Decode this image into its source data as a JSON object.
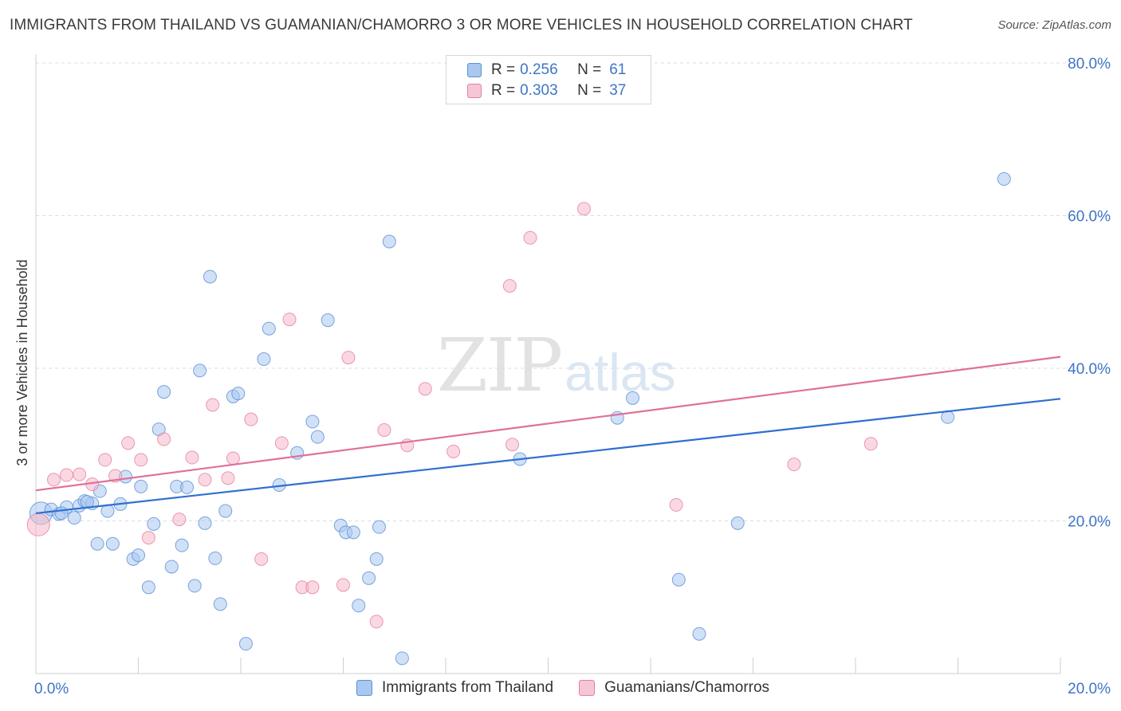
{
  "title": "IMMIGRANTS FROM THAILAND VS GUAMANIAN/CHAMORRO 3 OR MORE VEHICLES IN HOUSEHOLD CORRELATION CHART",
  "source": "Source: ZipAtlas.com",
  "watermark": {
    "zip": "ZIP",
    "atlas": "atlas"
  },
  "colors": {
    "blue_fill": "#a9c8f0",
    "blue_stroke": "#5b8fd6",
    "blue_line": "#2f6fcf",
    "pink_fill": "#f6b8cb",
    "pink_stroke": "#e77f9f",
    "pink_line": "#e0709a",
    "axis_text": "#3f75c7",
    "grid": "#dcdcdc"
  },
  "legend": {
    "rows": [
      {
        "r_label": "R =",
        "r_value": "0.256",
        "n_label": "N =",
        "n_value": "61"
      },
      {
        "r_label": "R =",
        "r_value": "0.303",
        "n_label": "N =",
        "n_value": "37"
      }
    ]
  },
  "bottom_legend": {
    "series1": "Immigrants from Thailand",
    "series2": "Guamanians/Chamorros"
  },
  "chart_data": {
    "type": "scatter",
    "title": "IMMIGRANTS FROM THAILAND VS GUAMANIAN/CHAMORRO 3 OR MORE VEHICLES IN HOUSEHOLD CORRELATION CHART",
    "xlabel": "",
    "ylabel": "3 or more Vehicles in Household",
    "xlim": [
      0,
      20
    ],
    "ylim": [
      0,
      80
    ],
    "x_tick_labels": [
      "0.0%",
      "20.0%"
    ],
    "y_ticks": [
      20,
      40,
      60,
      80
    ],
    "y_tick_labels": [
      "20.0%",
      "40.0%",
      "60.0%",
      "80.0%"
    ],
    "grid": true,
    "series": [
      {
        "name": "Immigrants from Thailand",
        "R": 0.256,
        "N": 61,
        "trend": {
          "x": [
            0,
            20
          ],
          "y": [
            21.0,
            36.0
          ]
        },
        "points": [
          {
            "x": 0.1,
            "y": 21.0,
            "big": true
          },
          {
            "x": 0.3,
            "y": 21.5
          },
          {
            "x": 0.45,
            "y": 20.9
          },
          {
            "x": 0.6,
            "y": 21.8
          },
          {
            "x": 0.75,
            "y": 20.4
          },
          {
            "x": 0.85,
            "y": 22.0
          },
          {
            "x": 0.95,
            "y": 22.6
          },
          {
            "x": 1.1,
            "y": 22.3
          },
          {
            "x": 1.25,
            "y": 23.9
          },
          {
            "x": 1.4,
            "y": 21.3
          },
          {
            "x": 1.5,
            "y": 17.0
          },
          {
            "x": 1.2,
            "y": 17.0
          },
          {
            "x": 1.65,
            "y": 22.2
          },
          {
            "x": 1.75,
            "y": 25.8
          },
          {
            "x": 1.9,
            "y": 15.0
          },
          {
            "x": 2.0,
            "y": 15.5
          },
          {
            "x": 2.05,
            "y": 24.5
          },
          {
            "x": 2.2,
            "y": 11.3
          },
          {
            "x": 2.3,
            "y": 19.6
          },
          {
            "x": 2.4,
            "y": 32.0
          },
          {
            "x": 2.5,
            "y": 36.9
          },
          {
            "x": 2.65,
            "y": 14.0
          },
          {
            "x": 2.75,
            "y": 24.5
          },
          {
            "x": 2.85,
            "y": 16.8
          },
          {
            "x": 2.95,
            "y": 24.4
          },
          {
            "x": 3.1,
            "y": 11.5
          },
          {
            "x": 3.2,
            "y": 39.7
          },
          {
            "x": 3.3,
            "y": 19.7
          },
          {
            "x": 3.4,
            "y": 52.0
          },
          {
            "x": 3.5,
            "y": 15.1
          },
          {
            "x": 3.6,
            "y": 9.1
          },
          {
            "x": 3.7,
            "y": 21.3
          },
          {
            "x": 3.85,
            "y": 36.3
          },
          {
            "x": 3.95,
            "y": 36.7
          },
          {
            "x": 4.1,
            "y": 3.9
          },
          {
            "x": 4.45,
            "y": 41.2
          },
          {
            "x": 4.55,
            "y": 45.2
          },
          {
            "x": 4.75,
            "y": 24.7
          },
          {
            "x": 5.1,
            "y": 28.9
          },
          {
            "x": 5.4,
            "y": 33.0
          },
          {
            "x": 5.5,
            "y": 31.0
          },
          {
            "x": 5.7,
            "y": 46.3
          },
          {
            "x": 5.95,
            "y": 19.4
          },
          {
            "x": 6.05,
            "y": 18.5
          },
          {
            "x": 6.2,
            "y": 18.5
          },
          {
            "x": 6.3,
            "y": 8.9
          },
          {
            "x": 6.5,
            "y": 12.5
          },
          {
            "x": 6.65,
            "y": 15.0
          },
          {
            "x": 6.7,
            "y": 19.2
          },
          {
            "x": 6.9,
            "y": 56.6
          },
          {
            "x": 7.15,
            "y": 2.0
          },
          {
            "x": 9.45,
            "y": 28.1
          },
          {
            "x": 11.35,
            "y": 33.5
          },
          {
            "x": 11.65,
            "y": 36.1
          },
          {
            "x": 12.55,
            "y": 12.3
          },
          {
            "x": 12.95,
            "y": 5.2
          },
          {
            "x": 13.7,
            "y": 19.7
          },
          {
            "x": 17.8,
            "y": 33.6
          },
          {
            "x": 18.9,
            "y": 64.8
          },
          {
            "x": 1.0,
            "y": 22.5
          },
          {
            "x": 0.5,
            "y": 21.0
          }
        ]
      },
      {
        "name": "Guamanians/Chamorros",
        "R": 0.303,
        "N": 37,
        "trend": {
          "x": [
            0,
            20
          ],
          "y": [
            24.0,
            41.5
          ]
        },
        "points": [
          {
            "x": 0.05,
            "y": 19.5,
            "big": true
          },
          {
            "x": 0.35,
            "y": 25.4
          },
          {
            "x": 0.6,
            "y": 26.0
          },
          {
            "x": 0.85,
            "y": 26.1
          },
          {
            "x": 1.1,
            "y": 24.8
          },
          {
            "x": 1.35,
            "y": 28.0
          },
          {
            "x": 1.55,
            "y": 25.9
          },
          {
            "x": 1.8,
            "y": 30.2
          },
          {
            "x": 2.05,
            "y": 28.0
          },
          {
            "x": 2.2,
            "y": 17.8
          },
          {
            "x": 2.5,
            "y": 30.7
          },
          {
            "x": 2.8,
            "y": 20.2
          },
          {
            "x": 3.05,
            "y": 28.3
          },
          {
            "x": 3.3,
            "y": 25.4
          },
          {
            "x": 3.45,
            "y": 35.2
          },
          {
            "x": 3.75,
            "y": 25.6
          },
          {
            "x": 3.85,
            "y": 28.2
          },
          {
            "x": 4.2,
            "y": 33.3
          },
          {
            "x": 4.4,
            "y": 15.0
          },
          {
            "x": 4.8,
            "y": 30.2
          },
          {
            "x": 4.95,
            "y": 46.4
          },
          {
            "x": 5.2,
            "y": 11.3
          },
          {
            "x": 5.4,
            "y": 11.3
          },
          {
            "x": 6.0,
            "y": 11.6
          },
          {
            "x": 6.1,
            "y": 41.4
          },
          {
            "x": 6.65,
            "y": 6.8
          },
          {
            "x": 6.8,
            "y": 31.9
          },
          {
            "x": 7.25,
            "y": 29.9
          },
          {
            "x": 7.6,
            "y": 37.3
          },
          {
            "x": 8.15,
            "y": 29.1
          },
          {
            "x": 9.25,
            "y": 50.8
          },
          {
            "x": 9.3,
            "y": 30.0
          },
          {
            "x": 9.65,
            "y": 57.1
          },
          {
            "x": 10.7,
            "y": 60.9
          },
          {
            "x": 12.5,
            "y": 22.1
          },
          {
            "x": 14.8,
            "y": 27.4
          },
          {
            "x": 16.3,
            "y": 30.1
          }
        ]
      }
    ]
  }
}
